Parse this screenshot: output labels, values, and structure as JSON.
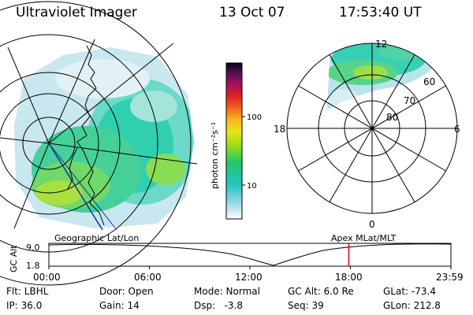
{
  "header": {
    "instrument": "Ultraviolet Imager",
    "date": "13 Oct 07",
    "time": "17:53:40 UT"
  },
  "colorbar": {
    "unit_label": "photon cm⁻²s⁻¹",
    "ticks": [
      "100",
      "10"
    ]
  },
  "polar_plot": {
    "mlt_labels": {
      "top": "12",
      "left": "18",
      "right": "6",
      "bottom": "0"
    },
    "lat_labels": [
      "60",
      "70",
      "80"
    ]
  },
  "altitude_plot": {
    "ylabel": "GC Alt",
    "y_ticks": [
      "9.0",
      "1.8"
    ],
    "left_caption": "Geographic Lat/Lon",
    "right_caption": "Apex  MLat/MLT",
    "x_ticks": [
      "00:00",
      "06:00",
      "12:00",
      "18:00",
      "23:59"
    ],
    "current_time_fraction": 0.746
  },
  "info": {
    "filter": "Flt: LBHL",
    "ip": "IP: 36.0",
    "door": "Door: Open",
    "gain": "Gain: 14",
    "mode": "Mode: Normal",
    "dsp": "Dsp:   -3.8",
    "gc_alt": "GC Alt: 6.0 Re",
    "seq": "Seq: 39",
    "glat": "GLat: -73.4",
    "glon": "GLon: 212.8"
  },
  "colors": {
    "current_time_marker": "#e00000"
  }
}
